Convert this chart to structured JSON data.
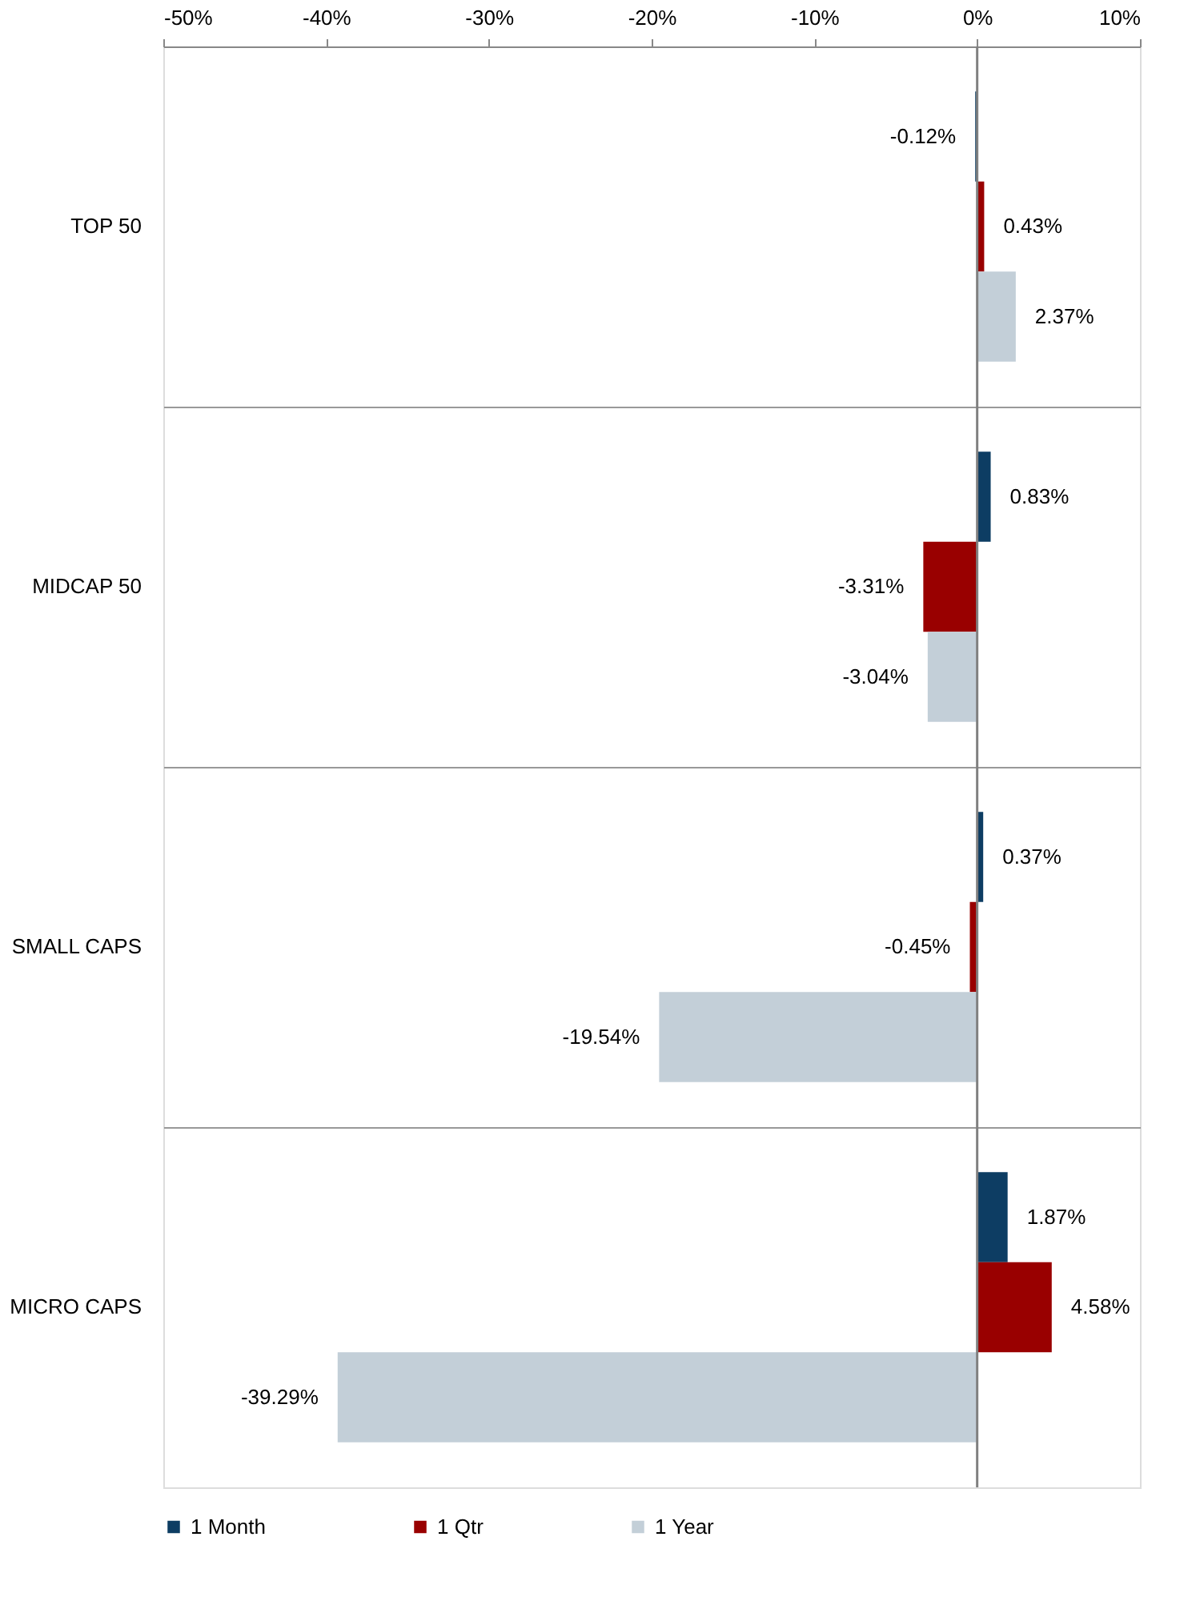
{
  "chart_data": {
    "type": "bar",
    "orientation": "horizontal",
    "categories": [
      "TOP 50",
      "MIDCAP 50",
      "SMALL CAPS",
      "MICRO CAPS"
    ],
    "series": [
      {
        "name": "1 Month",
        "color": "#0d3d63",
        "values": [
          -0.12,
          0.83,
          0.37,
          1.87
        ],
        "value_labels": [
          "-0.12%",
          "0.83%",
          "0.37%",
          "1.87%"
        ]
      },
      {
        "name": "1 Qtr",
        "color": "#990000",
        "values": [
          0.43,
          -3.31,
          -0.45,
          4.58
        ],
        "value_labels": [
          "0.43%",
          "-3.31%",
          "-0.45%",
          "4.58%"
        ]
      },
      {
        "name": "1 Year",
        "color": "#c3cfd8",
        "values": [
          2.37,
          -3.04,
          -19.54,
          -39.29
        ],
        "value_labels": [
          "2.37%",
          "-3.04%",
          "-19.54%",
          "-39.29%"
        ]
      }
    ],
    "xlim": [
      -50,
      10
    ],
    "xticks": [
      {
        "value": -50,
        "label": "-50%"
      },
      {
        "value": -40,
        "label": "-40%"
      },
      {
        "value": -30,
        "label": "-30%"
      },
      {
        "value": -20,
        "label": "-20%"
      },
      {
        "value": -10,
        "label": "-10%"
      },
      {
        "value": 0,
        "label": "0%"
      },
      {
        "value": 10,
        "label": "10%"
      }
    ],
    "ref_lines": [
      {
        "axis": "x",
        "value": 0,
        "color": "#808080"
      }
    ],
    "grid": "y",
    "legend": "bottom"
  }
}
